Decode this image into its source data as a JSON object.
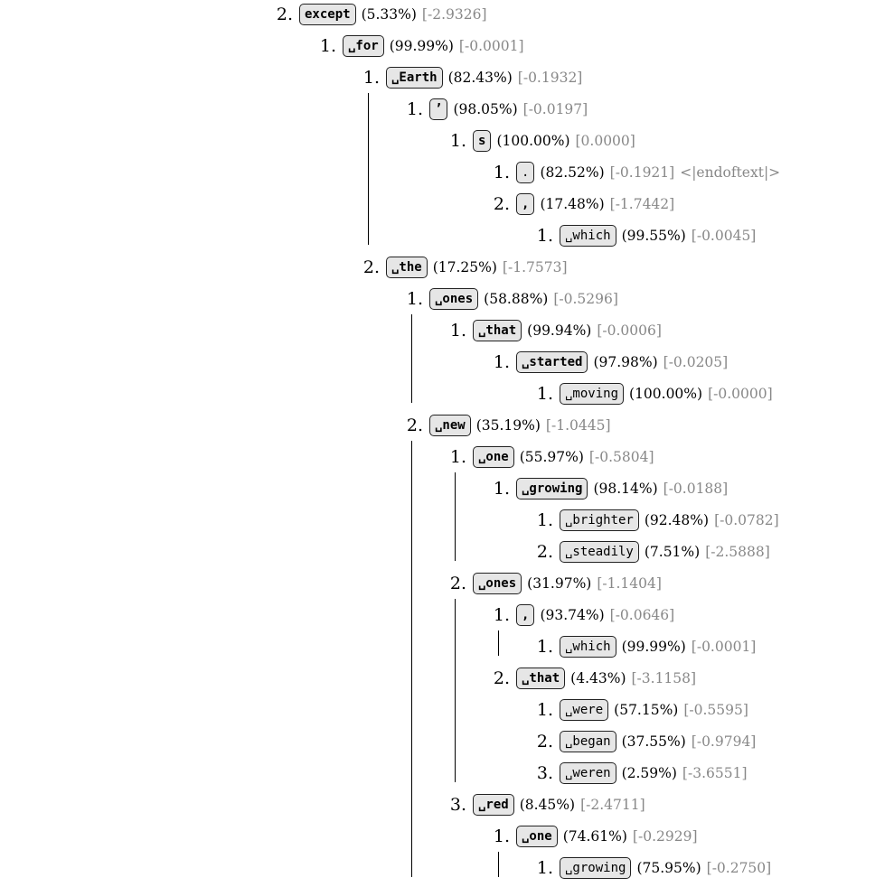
{
  "tree": [
    {
      "rank": "2.",
      "token": "except",
      "pct": "(5.33%)",
      "logprob": "[-2.9326]",
      "children": [
        {
          "rank": "1.",
          "token": "␣for",
          "pct": "(99.99%)",
          "logprob": "[-0.0001]",
          "children": [
            {
              "rank": "1.",
              "token": "␣Earth",
              "pct": "(82.43%)",
              "logprob": "[-0.1932]",
              "children": [
                {
                  "rank": "1.",
                  "token": "’",
                  "pct": "(98.05%)",
                  "logprob": "[-0.0197]",
                  "children": [
                    {
                      "rank": "1.",
                      "token": "s",
                      "pct": "(100.00%)",
                      "logprob": "[0.0000]",
                      "children": [
                        {
                          "rank": "1.",
                          "token": ".",
                          "pct": "(82.52%)",
                          "logprob": "[-0.1921]",
                          "extra": "<|endoftext|>",
                          "children": []
                        },
                        {
                          "rank": "2.",
                          "token": ",",
                          "pct": "(17.48%)",
                          "logprob": "[-1.7442]",
                          "children": [
                            {
                              "rank": "1.",
                              "token": "␣which",
                              "pct": "(99.55%)",
                              "logprob": "[-0.0045]",
                              "children": []
                            }
                          ]
                        }
                      ]
                    }
                  ]
                }
              ]
            },
            {
              "rank": "2.",
              "token": "␣the",
              "pct": "(17.25%)",
              "logprob": "[-1.7573]",
              "children": [
                {
                  "rank": "1.",
                  "token": "␣ones",
                  "pct": "(58.88%)",
                  "logprob": "[-0.5296]",
                  "children": [
                    {
                      "rank": "1.",
                      "token": "␣that",
                      "pct": "(99.94%)",
                      "logprob": "[-0.0006]",
                      "children": [
                        {
                          "rank": "1.",
                          "token": "␣started",
                          "pct": "(97.98%)",
                          "logprob": "[-0.0205]",
                          "children": [
                            {
                              "rank": "1.",
                              "token": "␣moving",
                              "pct": "(100.00%)",
                              "logprob": "[-0.0000]",
                              "children": []
                            }
                          ]
                        }
                      ]
                    }
                  ]
                },
                {
                  "rank": "2.",
                  "token": "␣new",
                  "pct": "(35.19%)",
                  "logprob": "[-1.0445]",
                  "children": [
                    {
                      "rank": "1.",
                      "token": "␣one",
                      "pct": "(55.97%)",
                      "logprob": "[-0.5804]",
                      "children": [
                        {
                          "rank": "1.",
                          "token": "␣growing",
                          "pct": "(98.14%)",
                          "logprob": "[-0.0188]",
                          "children": [
                            {
                              "rank": "1.",
                              "token": "␣brighter",
                              "pct": "(92.48%)",
                              "logprob": "[-0.0782]",
                              "children": []
                            },
                            {
                              "rank": "2.",
                              "token": "␣steadily",
                              "pct": "(7.51%)",
                              "logprob": "[-2.5888]",
                              "children": []
                            }
                          ]
                        }
                      ]
                    },
                    {
                      "rank": "2.",
                      "token": "␣ones",
                      "pct": "(31.97%)",
                      "logprob": "[-1.1404]",
                      "children": [
                        {
                          "rank": "1.",
                          "token": ",",
                          "pct": "(93.74%)",
                          "logprob": "[-0.0646]",
                          "children": [
                            {
                              "rank": "1.",
                              "token": "␣which",
                              "pct": "(99.99%)",
                              "logprob": "[-0.0001]",
                              "children": []
                            }
                          ]
                        },
                        {
                          "rank": "2.",
                          "token": "␣that",
                          "pct": "(4.43%)",
                          "logprob": "[-3.1158]",
                          "children": [
                            {
                              "rank": "1.",
                              "token": "␣were",
                              "pct": "(57.15%)",
                              "logprob": "[-0.5595]",
                              "children": []
                            },
                            {
                              "rank": "2.",
                              "token": "␣began",
                              "pct": "(37.55%)",
                              "logprob": "[-0.9794]",
                              "children": []
                            },
                            {
                              "rank": "3.",
                              "token": "␣weren",
                              "pct": "(2.59%)",
                              "logprob": "[-3.6551]",
                              "children": []
                            }
                          ]
                        }
                      ]
                    },
                    {
                      "rank": "3.",
                      "token": "␣red",
                      "pct": "(8.45%)",
                      "logprob": "[-2.4711]",
                      "children": [
                        {
                          "rank": "1.",
                          "token": "␣one",
                          "pct": "(74.61%)",
                          "logprob": "[-0.2929]",
                          "children": [
                            {
                              "rank": "1.",
                              "token": "␣growing",
                              "pct": "(75.95%)",
                              "logprob": "[-0.2750]",
                              "children": []
                            }
                          ]
                        }
                      ]
                    }
                  ]
                }
              ]
            }
          ]
        }
      ]
    }
  ]
}
